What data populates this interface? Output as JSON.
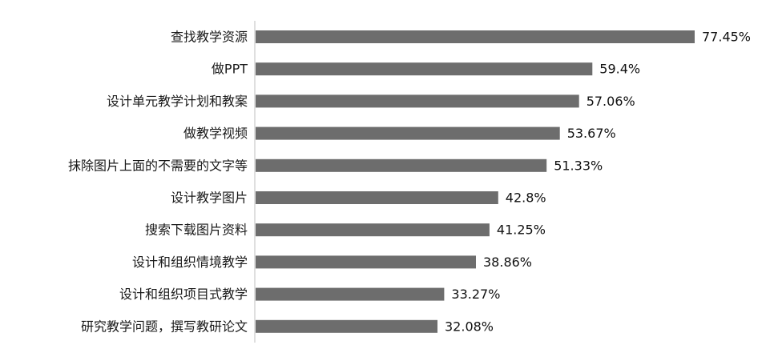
{
  "chart_data": {
    "type": "bar",
    "orientation": "horizontal",
    "categories": [
      "查找教学资源",
      "做PPT",
      "设计单元教学计划和教案",
      "做教学视频",
      "抹除图片上面的不需要的文字等",
      "设计教学图片",
      "搜索下载图片资料",
      "设计和组织情境教学",
      "设计和组织项目式教学",
      "研究教学问题，撰写教研论文"
    ],
    "values": [
      77.45,
      59.4,
      57.06,
      53.67,
      51.33,
      42.8,
      41.25,
      38.86,
      33.27,
      32.08
    ],
    "value_labels": [
      "77.45%",
      "59.4%",
      "57.06%",
      "53.67%",
      "51.33%",
      "42.8%",
      "41.25%",
      "38.86%",
      "33.27%",
      "32.08%"
    ],
    "title": "",
    "xlabel": "",
    "ylabel": "",
    "xlim": [
      0,
      77.45
    ],
    "grid": false,
    "legend": "none",
    "bar_color": "#6d6d6d",
    "axis_color": "#bfbfbf"
  }
}
